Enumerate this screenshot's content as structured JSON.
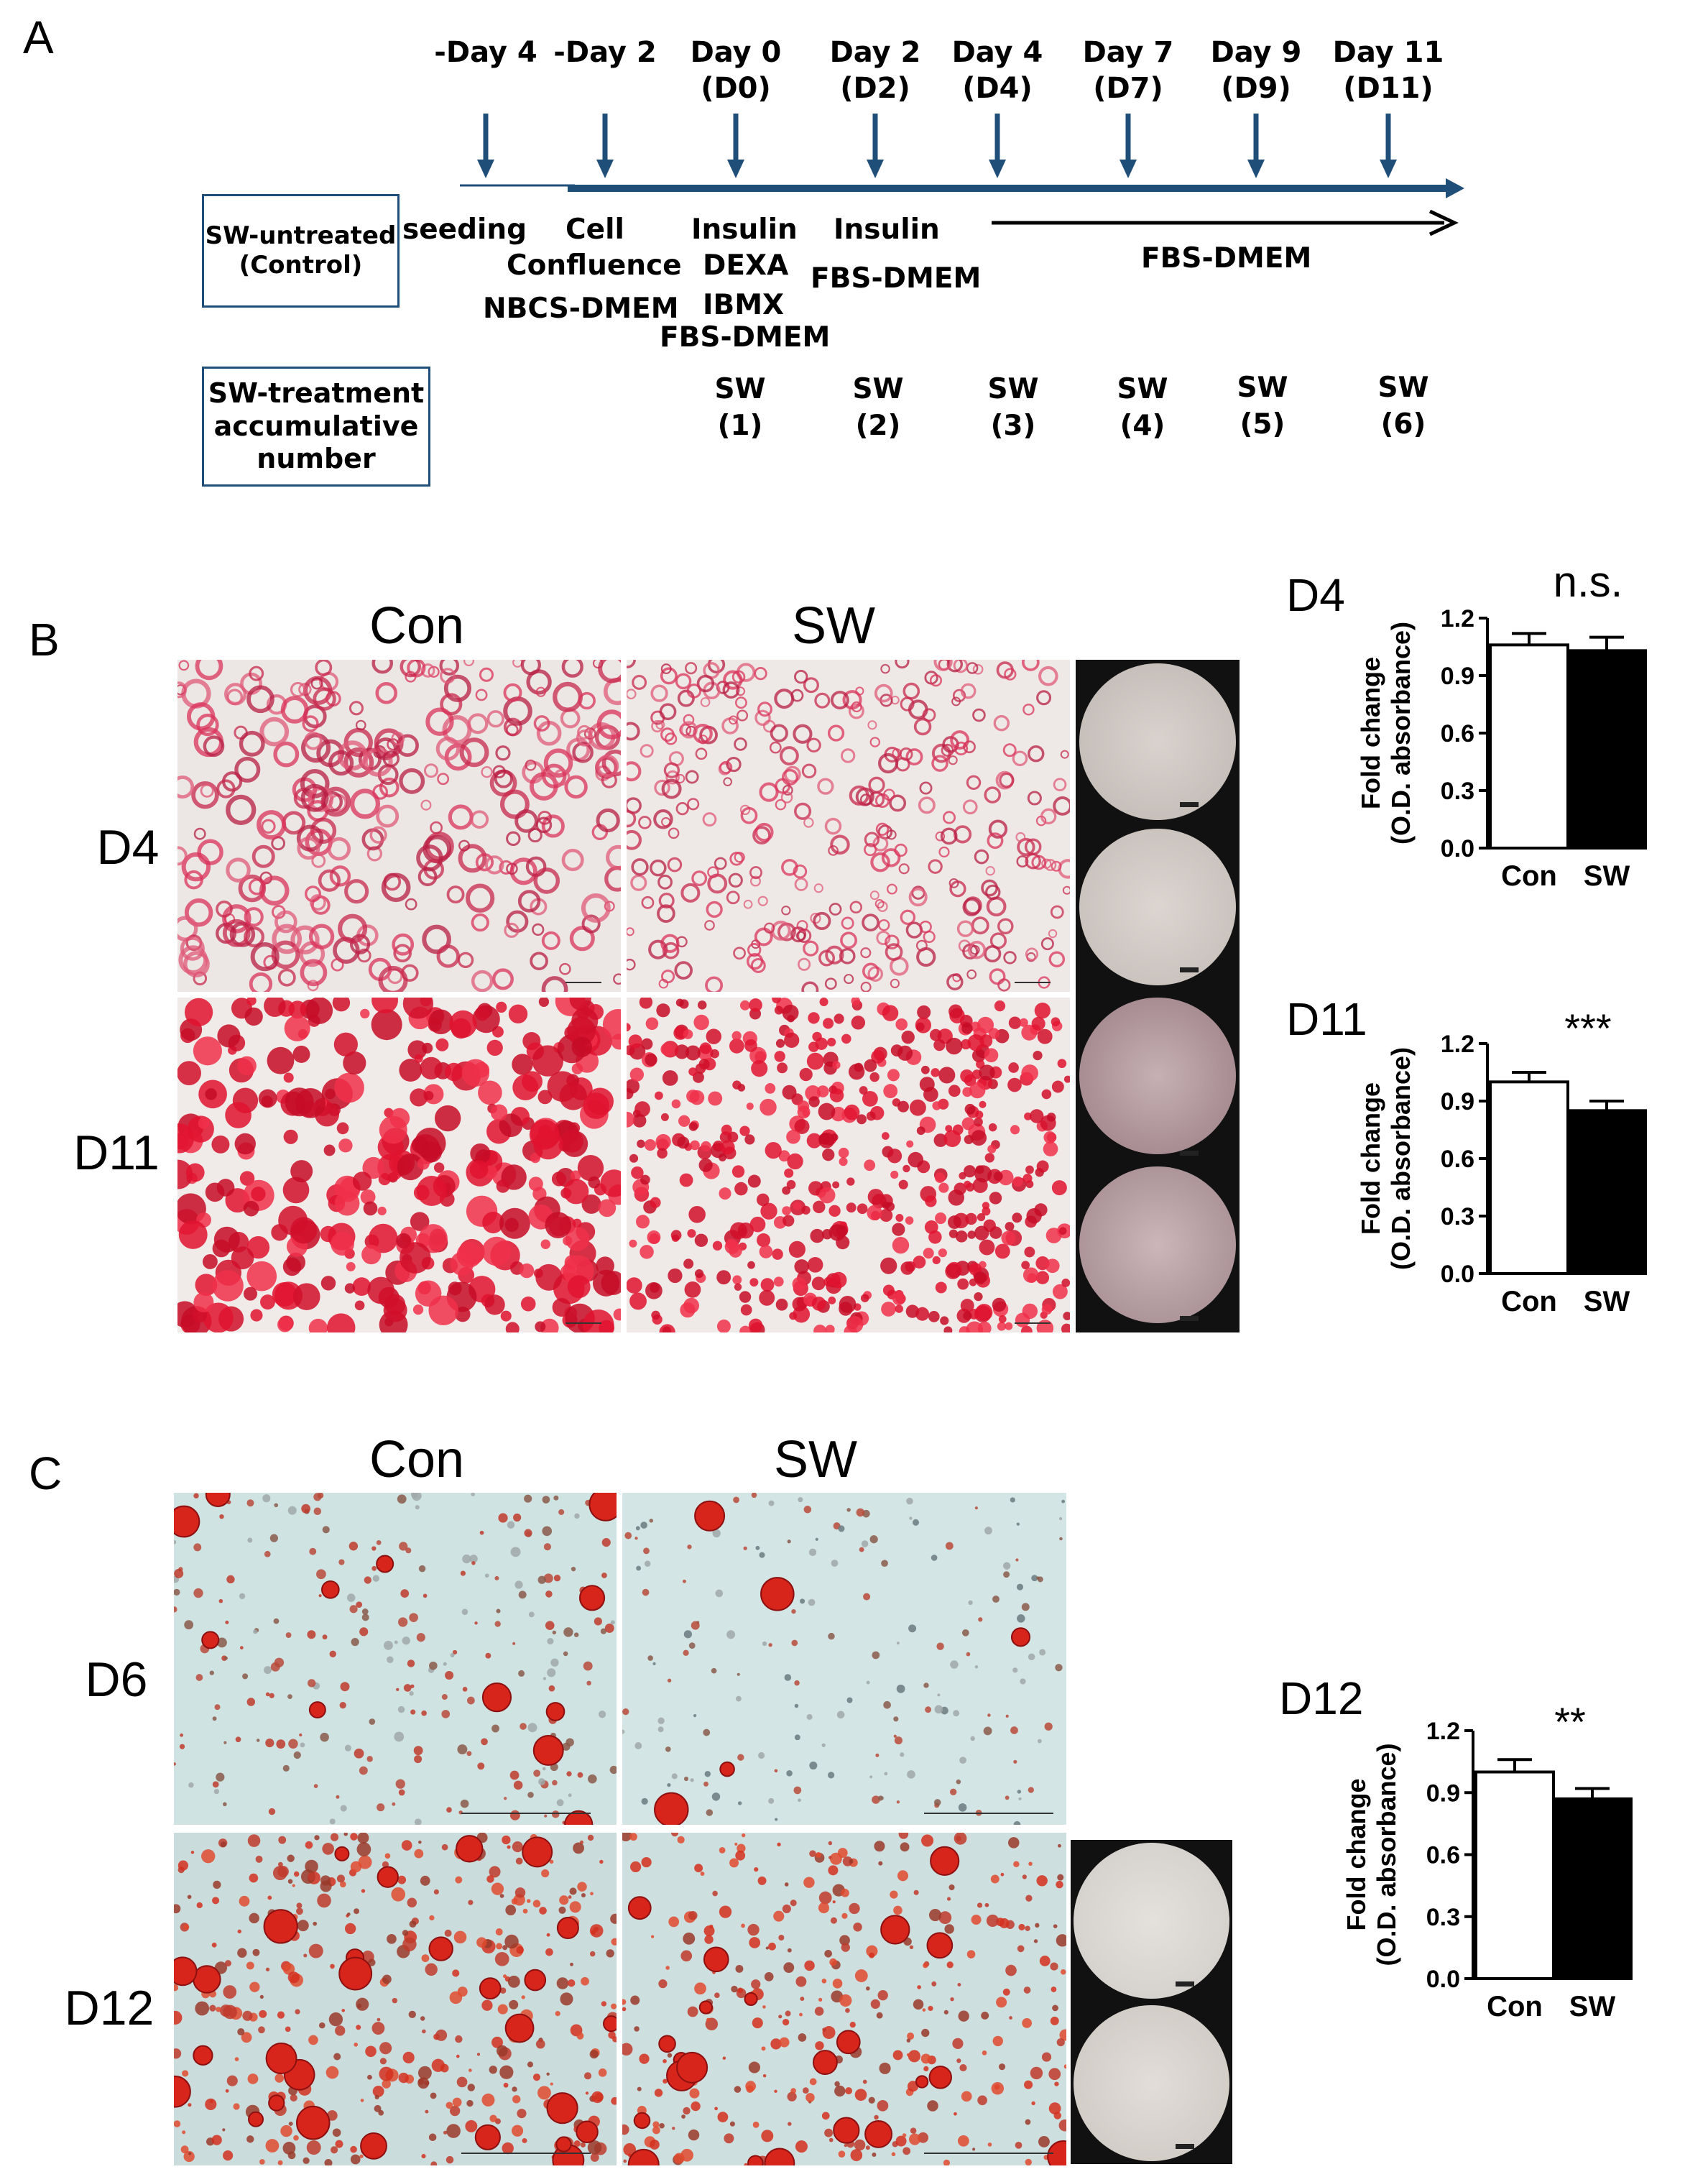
{
  "panels": {
    "a": "A",
    "b": "B",
    "c": "C"
  },
  "timeline": {
    "days": [
      {
        "line1": "-Day 4",
        "line2": ""
      },
      {
        "line1": "-Day 2",
        "line2": ""
      },
      {
        "line1": "Day 0",
        "line2": "(D0)"
      },
      {
        "line1": "Day 2",
        "line2": "(D2)"
      },
      {
        "line1": "Day 4",
        "line2": "(D4)"
      },
      {
        "line1": "Day 7",
        "line2": "(D7)"
      },
      {
        "line1": "Day 9",
        "line2": "(D9)"
      },
      {
        "line1": "Day 11",
        "line2": "(D11)"
      }
    ],
    "control_box": [
      "SW-untreated",
      "(Control)"
    ],
    "treatment_box": [
      "SW-treatment",
      "accumulative",
      "number"
    ],
    "seeding": "seeding",
    "cell": "Cell",
    "confluence": "Confluence",
    "nbcs": "NBCS-DMEM",
    "insulin_d0": "Insulin",
    "dexa": "DEXA",
    "ibmx": "IBMX",
    "fbs_d0": "FBS-DMEM",
    "insulin_d2": "Insulin",
    "fbs_d2": "FBS-DMEM",
    "fbs_later": "FBS-DMEM",
    "sw_items": [
      {
        "label": "SW",
        "count": "(1)"
      },
      {
        "label": "SW",
        "count": "(2)"
      },
      {
        "label": "SW",
        "count": "(3)"
      },
      {
        "label": "SW",
        "count": "(4)"
      },
      {
        "label": "SW",
        "count": "(5)"
      },
      {
        "label": "SW",
        "count": "(6)"
      }
    ]
  },
  "panel_b": {
    "col_con": "Con",
    "col_sw": "SW",
    "row_d4": "D4",
    "row_d11": "D11"
  },
  "panel_c": {
    "col_con": "Con",
    "col_sw": "SW",
    "row_d6": "D6",
    "row_d12": "D12"
  },
  "colors": {
    "timeline_blue": "#1f4e79",
    "stain_red": "#d81e3a",
    "bar_con": "#ffffff",
    "bar_sw": "#000000"
  },
  "chart_data": [
    {
      "type": "bar",
      "title": "D4",
      "ylabel_line1": "Fold change",
      "ylabel_line2": "(O.D. absorbance)",
      "categories": [
        "Con",
        "SW"
      ],
      "values": [
        1.06,
        1.03
      ],
      "errors": [
        0.06,
        0.07
      ],
      "ylim": [
        0.0,
        1.2
      ],
      "yticks": [
        "0.0",
        "0.3",
        "0.6",
        "0.9",
        "1.2"
      ],
      "significance": "n.s."
    },
    {
      "type": "bar",
      "title": "D11",
      "ylabel_line1": "Fold change",
      "ylabel_line2": "(O.D. absorbance)",
      "categories": [
        "Con",
        "SW"
      ],
      "values": [
        1.0,
        0.85
      ],
      "errors": [
        0.05,
        0.05
      ],
      "ylim": [
        0.0,
        1.2
      ],
      "yticks": [
        "0.0",
        "0.3",
        "0.6",
        "0.9",
        "1.2"
      ],
      "significance": "***"
    },
    {
      "type": "bar",
      "title": "D12",
      "ylabel_line1": "Fold change",
      "ylabel_line2": "(O.D. absorbance)",
      "categories": [
        "Con",
        "SW"
      ],
      "values": [
        1.0,
        0.87
      ],
      "errors": [
        0.06,
        0.05
      ],
      "ylim": [
        0.0,
        1.2
      ],
      "yticks": [
        "0.0",
        "0.3",
        "0.6",
        "0.9",
        "1.2"
      ],
      "significance": "**"
    }
  ]
}
